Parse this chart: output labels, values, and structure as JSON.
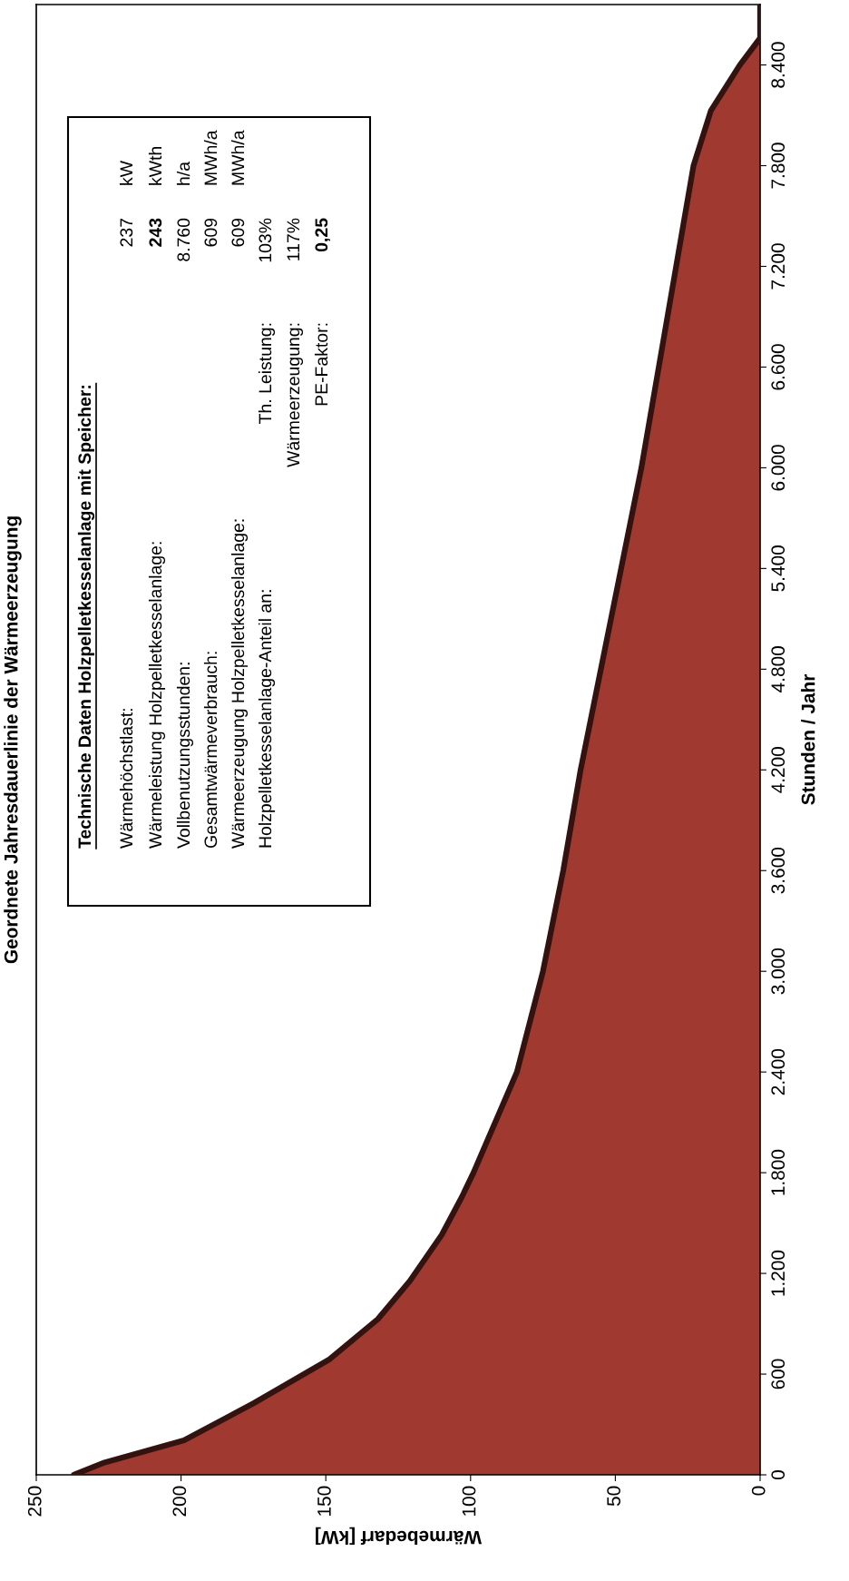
{
  "chart_data": {
    "type": "area",
    "orientation": "horizontal",
    "title": "Geordnete Jahresdauerlinie der Wärmeerzeugung",
    "xlabel": "Wärmebedarf [kW]",
    "ylabel": "Stunden / Jahr",
    "x": [
      0,
      70,
      205,
      426,
      685,
      928,
      1154,
      1429,
      1656,
      1800,
      2400,
      3000,
      3600,
      4200,
      4800,
      5400,
      6000,
      6600,
      7200,
      7800,
      8128,
      8400,
      8560,
      8760
    ],
    "series": [
      {
        "color": "#a0392f",
        "values": [
          237,
          227,
          199,
          175,
          149,
          132,
          121,
          110,
          103,
          99,
          84,
          75,
          68,
          62,
          55,
          48,
          41,
          35,
          29,
          23,
          17,
          7,
          0,
          0
        ]
      }
    ],
    "grid": false,
    "xlim": [
      250,
      0
    ],
    "ylim": [
      0,
      8760
    ],
    "xticks": [
      0,
      50,
      100,
      150,
      200,
      250
    ],
    "yticks": [
      0,
      600,
      {
        "value": 1200,
        "label": "1.200"
      },
      {
        "value": 1800,
        "label": "1.800"
      },
      {
        "value": 2400,
        "label": "2.400"
      },
      {
        "value": 3000,
        "label": "3.000"
      },
      {
        "value": 3600,
        "label": "3.600"
      },
      {
        "value": 4200,
        "label": "4.200"
      },
      {
        "value": 4800,
        "label": "4.800"
      },
      {
        "value": 5400,
        "label": "5.400"
      },
      {
        "value": 6000,
        "label": "6.000"
      },
      {
        "value": 6600,
        "label": "6.600"
      },
      {
        "value": 7200,
        "label": "7.200"
      },
      {
        "value": 7800,
        "label": "7.800"
      },
      {
        "value": 8400,
        "label": "8.400"
      }
    ],
    "annotations": [
      "Technische Daten Holzpelletkesselanlage mit Speicher:",
      "Wärmehöchstlast:",
      "237",
      "kW",
      "Wärmeleistung Holzpelletkesselanlage:",
      "243",
      "kWth",
      "Vollbenutzungsstunden:",
      "8.760",
      "h/a",
      "Gesamtwärmeverbrauch:",
      "609",
      "MWh/a",
      "Wärmeerzeugung Holzpelletkesselanlage:",
      "609",
      "MWh/a",
      "Holzpelletkesselanlage-Anteil an:",
      "Th. Leistung:",
      "103%",
      "Wärmeerzeugung:",
      "117%",
      "PE-Faktor:",
      "0,25"
    ]
  }
}
